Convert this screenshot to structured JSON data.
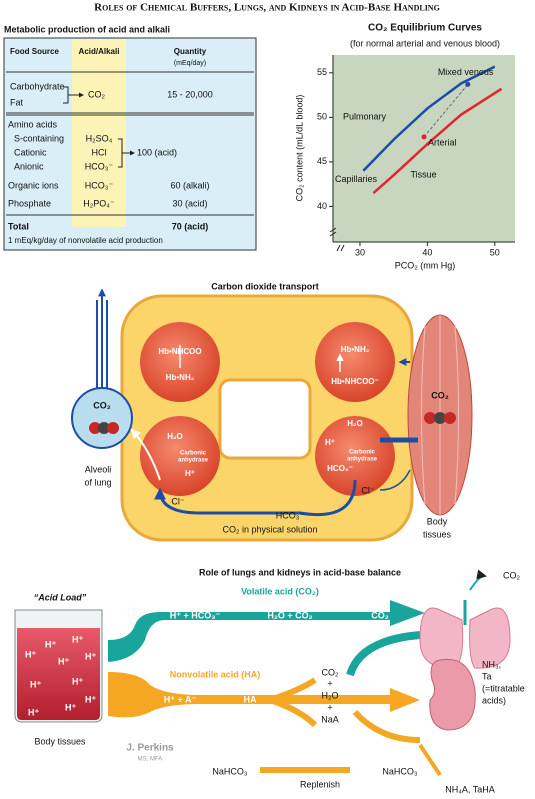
{
  "title": "Roles of Chemical Buffers, Lungs, and Kidneys in Acid-Base Handling",
  "table": {
    "title": "Metabolic production of acid and alkali",
    "header": [
      "Food Source",
      "Acid/Alkali",
      "Quantity",
      "(mEq/day)"
    ],
    "carbohydrate_group": {
      "foods": [
        "Carbohydrate",
        "Fat"
      ],
      "acid": "CO₂",
      "quantity": "15 - 20,000"
    },
    "amino_group": {
      "heading": "Amino acids",
      "foods": [
        "S-containing",
        "Cationic",
        "Anionic"
      ],
      "acids": [
        "H₂SO₄",
        "HCl",
        "HCO₃⁻"
      ],
      "quantity": "100 (acid)"
    },
    "rows": [
      [
        "Organic ions",
        "HCO₃⁻",
        "60 (alkali)"
      ],
      [
        "Phosphate",
        "H₂PO₄⁻",
        "30 (acid)"
      ]
    ],
    "total": {
      "label": "Total",
      "quantity": "70 (acid)"
    },
    "footnote": "1 mEq/kg/day of nonvolatile acid production"
  },
  "chart": {
    "title": "CO₂ Equilibrium Curves",
    "subtitle": "(for normal arterial and venous blood)",
    "y_label": "CO₂ content (mL/dL blood)",
    "x_label": "PCO₂ (mm Hg)",
    "xlim": [
      26,
      53
    ],
    "ylim": [
      36,
      57
    ],
    "xticks": [
      30,
      40,
      50
    ],
    "yticks": [
      40,
      45,
      50,
      55
    ],
    "series": [
      {
        "name": "Pulmonary",
        "color": "#1d4ea6",
        "x": [
          30.5,
          35,
          40,
          45,
          50
        ],
        "values": [
          44,
          47.5,
          51,
          53.8,
          55.7
        ]
      },
      {
        "name": "Tissue",
        "color": "#e0262e",
        "x": [
          32,
          35,
          40,
          45,
          51
        ],
        "values": [
          41.5,
          43.5,
          47,
          50.3,
          53.2
        ]
      }
    ],
    "annotation": "Capillaries",
    "points": [
      {
        "label": "Mixed venous",
        "x": 46,
        "y": 53.7,
        "color": "#1d4ea6"
      },
      {
        "label": "Arterial",
        "x": 39.5,
        "y": 47.8,
        "color": "#e0262e"
      }
    ]
  },
  "transport": {
    "title": "Carbon dioxide transport",
    "labels": [
      "Hb•NHCOO",
      "Hb•NH₂",
      "Hb•NH₂",
      "Hb•NHCOO⁻",
      "H₂O",
      "Carbonic",
      "anhydrase",
      "H⁺",
      "H₂O",
      "H⁺",
      "Carbonic",
      "anhydrase",
      "HCO₃⁻",
      "CO₂",
      "CO₂",
      "Alveoli",
      "of lung",
      "Body",
      "tissues",
      "Cl⁻",
      "Cl⁻",
      "HCO₃⁻",
      "CO₂ in physical solution"
    ]
  },
  "balance": {
    "title": "Role of lungs and kidneys in acid-base balance",
    "acid_load": "“Acid Load”",
    "h_plus": "H⁺",
    "body_tissues": "Body tissues",
    "volatile": "Volatile acid (CO₂)",
    "volatile_eq": [
      "H⁺ + HCO₃⁻",
      "H₂O + CO₂",
      "CO₂"
    ],
    "co2_out": "CO₂",
    "nonvolatile": "Nonvolatile acid (HA)",
    "ha_eq": [
      "H⁺ + A⁻",
      "HA"
    ],
    "products": [
      "CO₂",
      "+",
      "H₂O",
      "+",
      "NaA"
    ],
    "kidney_out": [
      "NH₃,",
      "Ta",
      "(=titratable",
      "acids)"
    ],
    "kidney_bottom": "NH₄A, TaHA",
    "nahco3": [
      "NaHCO₃",
      "NaHCO₃"
    ],
    "replenish": "Replenish",
    "signature": [
      "J. Perkins",
      "MS, MFA"
    ]
  }
}
